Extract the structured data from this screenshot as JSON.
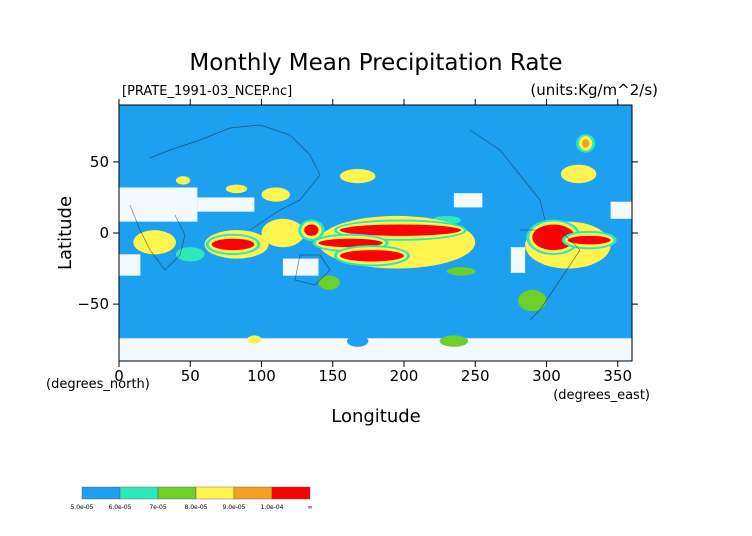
{
  "chart_data": {
    "type": "heatmap",
    "title": "Monthly Mean Precipitation Rate",
    "file_label": "[PRATE_1991-03_NCEP.nc]",
    "units_label": "(units:Kg/m^2/s)",
    "xlabel": "Longitude",
    "ylabel": "Latitude",
    "x_units": "(degrees_east)",
    "y_units": "(degrees_north)",
    "xlim": [
      0,
      360
    ],
    "ylim": [
      -90,
      90
    ],
    "x_ticks": [
      "0",
      "50",
      "100",
      "150",
      "200",
      "250",
      "300",
      "350"
    ],
    "x_tick_values": [
      0,
      50,
      100,
      150,
      200,
      250,
      300,
      350
    ],
    "y_ticks": [
      "50",
      "0",
      "−50"
    ],
    "y_tick_values": [
      50,
      0,
      -50
    ],
    "colorbar": {
      "colors": [
        "#1ea0f0",
        "#2fe8b8",
        "#6ccf2a",
        "#fff44f",
        "#f4a020",
        "#ff0000"
      ],
      "labels": [
        "5.0e-05",
        "6.0e-05",
        "7e-05",
        "8.0e-05",
        "9.0e-05",
        "1.0e-04",
        "∞"
      ]
    },
    "background_color": "#1ea0f0",
    "missing_color": "#ffffff",
    "regions": [
      {
        "level": 5,
        "lon": [
          155,
          240
        ],
        "lat": [
          -2,
          6
        ]
      },
      {
        "level": 5,
        "lon": [
          140,
          185
        ],
        "lat": [
          -10,
          -4
        ]
      },
      {
        "level": 5,
        "lon": [
          155,
          200
        ],
        "lat": [
          -20,
          -12
        ]
      },
      {
        "level": 5,
        "lon": [
          65,
          95
        ],
        "lat": [
          -12,
          -4
        ]
      },
      {
        "level": 5,
        "lon": [
          290,
          320
        ],
        "lat": [
          -12,
          6
        ]
      },
      {
        "level": 5,
        "lon": [
          315,
          345
        ],
        "lat": [
          -8,
          -2
        ]
      },
      {
        "level": 5,
        "lon": [
          130,
          140
        ],
        "lat": [
          -2,
          6
        ]
      },
      {
        "level": 3,
        "lon": [
          60,
          105
        ],
        "lat": [
          -18,
          2
        ]
      },
      {
        "level": 3,
        "lon": [
          140,
          250
        ],
        "lat": [
          -25,
          12
        ]
      },
      {
        "level": 3,
        "lon": [
          285,
          345
        ],
        "lat": [
          -25,
          8
        ]
      },
      {
        "level": 3,
        "lon": [
          10,
          40
        ],
        "lat": [
          -15,
          2
        ]
      },
      {
        "level": 3,
        "lon": [
          100,
          130
        ],
        "lat": [
          -10,
          10
        ]
      },
      {
        "level": 3,
        "lon": [
          155,
          180
        ],
        "lat": [
          35,
          45
        ]
      },
      {
        "level": 3,
        "lon": [
          310,
          335
        ],
        "lat": [
          35,
          48
        ]
      },
      {
        "level": 3,
        "lon": [
          100,
          120
        ],
        "lat": [
          22,
          32
        ]
      },
      {
        "level": 2,
        "lon": [
          280,
          300
        ],
        "lat": [
          -55,
          -40
        ]
      },
      {
        "level": 2,
        "lon": [
          225,
          245
        ],
        "lat": [
          -80,
          -72
        ]
      },
      {
        "level": 2,
        "lon": [
          230,
          250
        ],
        "lat": [
          -30,
          -24
        ]
      },
      {
        "level": 2,
        "lon": [
          140,
          155
        ],
        "lat": [
          -40,
          -30
        ]
      },
      {
        "level": 1,
        "lon": [
          220,
          240
        ],
        "lat": [
          6,
          12
        ]
      },
      {
        "level": 1,
        "lon": [
          40,
          60
        ],
        "lat": [
          -20,
          -10
        ]
      },
      {
        "level": 0,
        "lon": [
          160,
          175
        ],
        "lat": [
          -80,
          -72
        ]
      },
      {
        "level": 3,
        "lon": [
          90,
          100
        ],
        "lat": [
          -78,
          -72
        ]
      },
      {
        "level": 4,
        "lon": [
          325,
          330
        ],
        "lat": [
          60,
          66
        ]
      },
      {
        "level": 3,
        "lon": [
          40,
          50
        ],
        "lat": [
          34,
          40
        ]
      },
      {
        "level": 3,
        "lon": [
          75,
          90
        ],
        "lat": [
          28,
          34
        ]
      }
    ],
    "missing_regions": [
      {
        "lon": [
          0,
          55
        ],
        "lat": [
          8,
          32
        ]
      },
      {
        "lon": [
          55,
          95
        ],
        "lat": [
          15,
          25
        ]
      },
      {
        "lon": [
          115,
          140
        ],
        "lat": [
          -30,
          -18
        ]
      },
      {
        "lon": [
          360,
          360
        ],
        "lat": [
          0,
          0
        ]
      },
      {
        "lon": [
          235,
          255
        ],
        "lat": [
          18,
          28
        ]
      },
      {
        "lon": [
          0,
          360
        ],
        "lat": [
          -90,
          -74
        ]
      },
      {
        "lon": [
          275,
          285
        ],
        "lat": [
          -28,
          -10
        ]
      },
      {
        "lon": [
          345,
          360
        ],
        "lat": [
          10,
          22
        ]
      },
      {
        "lon": [
          0,
          15
        ],
        "lat": [
          -30,
          -15
        ]
      }
    ]
  }
}
